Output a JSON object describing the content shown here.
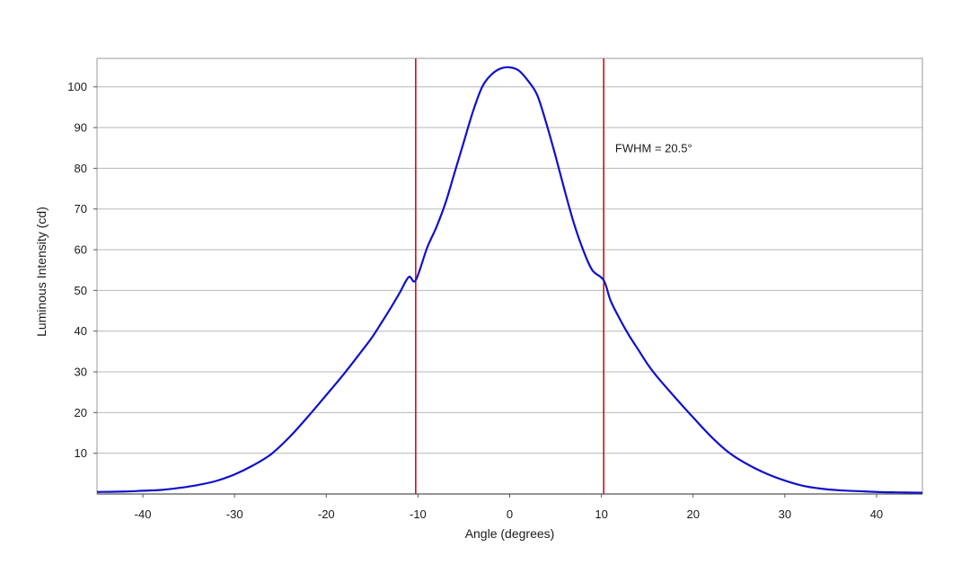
{
  "chart_data": {
    "type": "line",
    "title": "",
    "xlabel": "Angle (degrees)",
    "ylabel": "Luminous Intensity (cd)",
    "xlim": [
      -45,
      45
    ],
    "ylim": [
      0,
      107
    ],
    "xticks": [
      -40,
      -30,
      -20,
      -10,
      0,
      10,
      20,
      30,
      40
    ],
    "yticks": [
      10,
      20,
      30,
      40,
      50,
      60,
      70,
      80,
      90,
      100
    ],
    "grid": "horizontal",
    "legend": "none",
    "series": [
      {
        "color": "#1010cc",
        "x": [
          -45,
          -42,
          -40,
          -38,
          -36,
          -34,
          -32,
          -30,
          -28,
          -26,
          -24,
          -22,
          -20,
          -18,
          -16,
          -15,
          -14,
          -13,
          -12,
          -11,
          -10.25,
          -9,
          -8,
          -7,
          -6,
          -5,
          -4,
          -3,
          -2,
          -1,
          0,
          1,
          2,
          3,
          4,
          5,
          6,
          7,
          8,
          9,
          10.25,
          11,
          12,
          13,
          14,
          15,
          16,
          18,
          20,
          22,
          24,
          26,
          28,
          30,
          32,
          34,
          36,
          38,
          40,
          42,
          45
        ],
        "y": [
          0.5,
          0.6,
          0.8,
          1.0,
          1.5,
          2.2,
          3.2,
          4.8,
          7.0,
          9.8,
          14.0,
          19.0,
          24.3,
          29.7,
          35.5,
          38.5,
          42.0,
          45.6,
          49.4,
          53.3,
          52.5,
          60.5,
          65.5,
          71.5,
          79.0,
          86.5,
          94.0,
          100.0,
          103.0,
          104.5,
          104.8,
          104.0,
          101.5,
          98.0,
          91.0,
          83.0,
          74.5,
          66.5,
          60.0,
          55.0,
          52.5,
          47.5,
          43.0,
          39.0,
          35.5,
          32.0,
          29.0,
          23.8,
          18.8,
          14.0,
          10.0,
          7.2,
          5.0,
          3.3,
          2.0,
          1.3,
          0.9,
          0.7,
          0.5,
          0.4,
          0.3
        ]
      }
    ],
    "vlines": [
      {
        "x": -10.25,
        "color": "#cc1111"
      },
      {
        "x": 10.25,
        "color": "#cc1111"
      }
    ],
    "annotation": {
      "text": "FWHM = 20.5°",
      "x": 11.5,
      "y": 84
    }
  },
  "colors": {
    "grid": "#b8b8b8",
    "frame": "#999999",
    "axis": "#555555"
  }
}
